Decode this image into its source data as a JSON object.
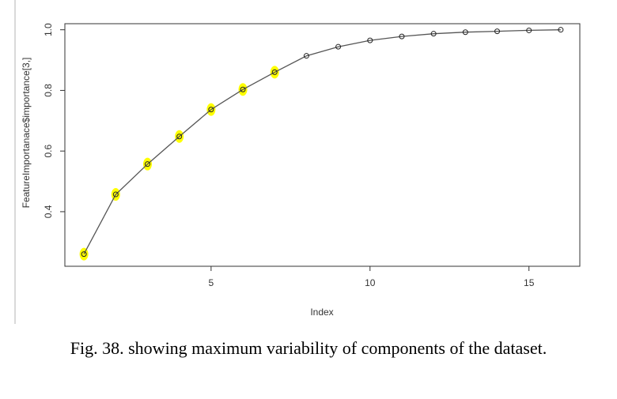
{
  "caption": "Fig. 38. showing maximum variability of components of the dataset.",
  "colors": {
    "line": "#555555",
    "points": "#222222",
    "highlight": "#ffff00",
    "frame": "#333333"
  },
  "chart_data": {
    "type": "line",
    "xlabel": "Index",
    "ylabel": "FeatureImportanace$importance[3,]",
    "xlim": [
      0.4,
      16.6
    ],
    "ylim": [
      0.22,
      1.02
    ],
    "x_ticks": [
      5,
      10,
      15
    ],
    "y_ticks": [
      0.4,
      0.6,
      0.8,
      1.0
    ],
    "x_tick_labels": [
      "5",
      "10",
      "15"
    ],
    "y_tick_labels": [
      "0.4",
      "0.6",
      "0.8",
      "1.0"
    ],
    "grid": false,
    "series": [
      {
        "x": [
          1,
          2,
          3,
          4,
          5,
          6,
          7,
          8,
          9,
          10,
          11,
          12,
          13,
          14,
          15,
          16
        ],
        "values": [
          0.26,
          0.457,
          0.557,
          0.648,
          0.737,
          0.803,
          0.86,
          0.914,
          0.944,
          0.965,
          0.978,
          0.987,
          0.992,
          0.995,
          0.998,
          1.0
        ]
      }
    ],
    "highlighted_points": [
      1,
      2,
      3,
      4,
      5,
      6,
      7
    ]
  }
}
